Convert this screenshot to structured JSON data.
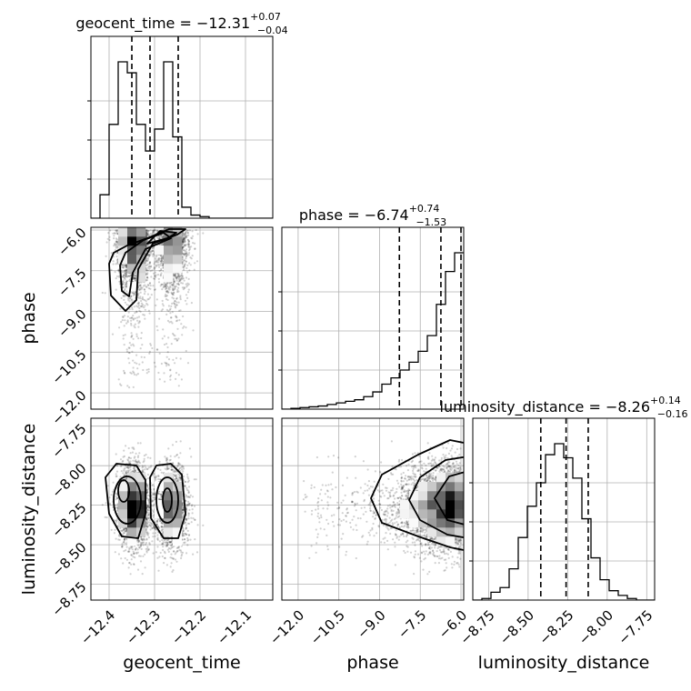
{
  "chart_data": {
    "type": "corner",
    "parameters": [
      "geocent_time",
      "phase",
      "luminosity_distance"
    ],
    "titles": {
      "geocent_time": {
        "prefix": "geocent_time = ",
        "median": "−12.31",
        "plus": "+0.07",
        "minus": "−0.04"
      },
      "phase": {
        "prefix": "phase = ",
        "median": "−6.74",
        "plus": "+0.74",
        "minus": "−1.53"
      },
      "luminosity_distance": {
        "prefix": "luminosity_distance = ",
        "median": "−8.26",
        "plus": "+0.14",
        "minus": "−0.16"
      }
    },
    "axes": {
      "geocent_time": {
        "label": "geocent_time",
        "range": [
          -12.44,
          -12.04
        ],
        "ticks": [
          -12.4,
          -12.3,
          -12.2,
          -12.1
        ],
        "tick_labels": [
          "−12.4",
          "−12.3",
          "−12.2",
          "−12.1"
        ]
      },
      "phase": {
        "label": "phase",
        "range": [
          -12.6,
          -5.9
        ],
        "ticks": [
          -12.0,
          -10.5,
          -9.0,
          -7.5,
          -6.0
        ],
        "tick_labels": [
          "−12.0",
          "−10.5",
          "−9.0",
          "−7.5",
          "−6.0"
        ]
      },
      "luminosity_distance": {
        "label": "luminosity_distance",
        "range": [
          -8.85,
          -7.7
        ],
        "ticks": [
          -8.75,
          -8.5,
          -8.25,
          -8.0,
          -7.75
        ],
        "tick_labels": [
          "−8.75",
          "−8.50",
          "−8.25",
          "−8.00",
          "−7.75"
        ]
      }
    },
    "quantile_lines": {
      "geocent_time": [
        -12.35,
        -12.31,
        -12.248
      ],
      "phase": [
        -8.27,
        -6.74,
        -6.0
      ],
      "luminosity_distance": [
        -8.42,
        -8.26,
        -8.12
      ]
    },
    "histograms": {
      "geocent_time": {
        "edges_start": -12.44,
        "bin_width": 0.02,
        "counts": [
          0,
          0.15,
          0.6,
          1.0,
          0.93,
          0.6,
          0.43,
          0.57,
          1.0,
          0.52,
          0.07,
          0.02,
          0.01,
          0,
          0,
          0,
          0,
          0,
          0,
          0
        ]
      },
      "phase": {
        "edges_start": -12.6,
        "bin_width": 0.335,
        "counts": [
          0,
          0.005,
          0.01,
          0.015,
          0.02,
          0.03,
          0.04,
          0.05,
          0.06,
          0.08,
          0.11,
          0.16,
          0.2,
          0.25,
          0.3,
          0.37,
          0.47,
          0.67,
          0.88,
          1.0
        ]
      },
      "luminosity_distance": {
        "edges_start": -8.85,
        "bin_width": 0.0575,
        "counts": [
          0,
          0.01,
          0.05,
          0.08,
          0.2,
          0.4,
          0.6,
          0.75,
          0.93,
          1.0,
          0.91,
          0.78,
          0.52,
          0.27,
          0.13,
          0.06,
          0.03,
          0.01,
          0,
          0
        ]
      }
    },
    "grid": true
  }
}
